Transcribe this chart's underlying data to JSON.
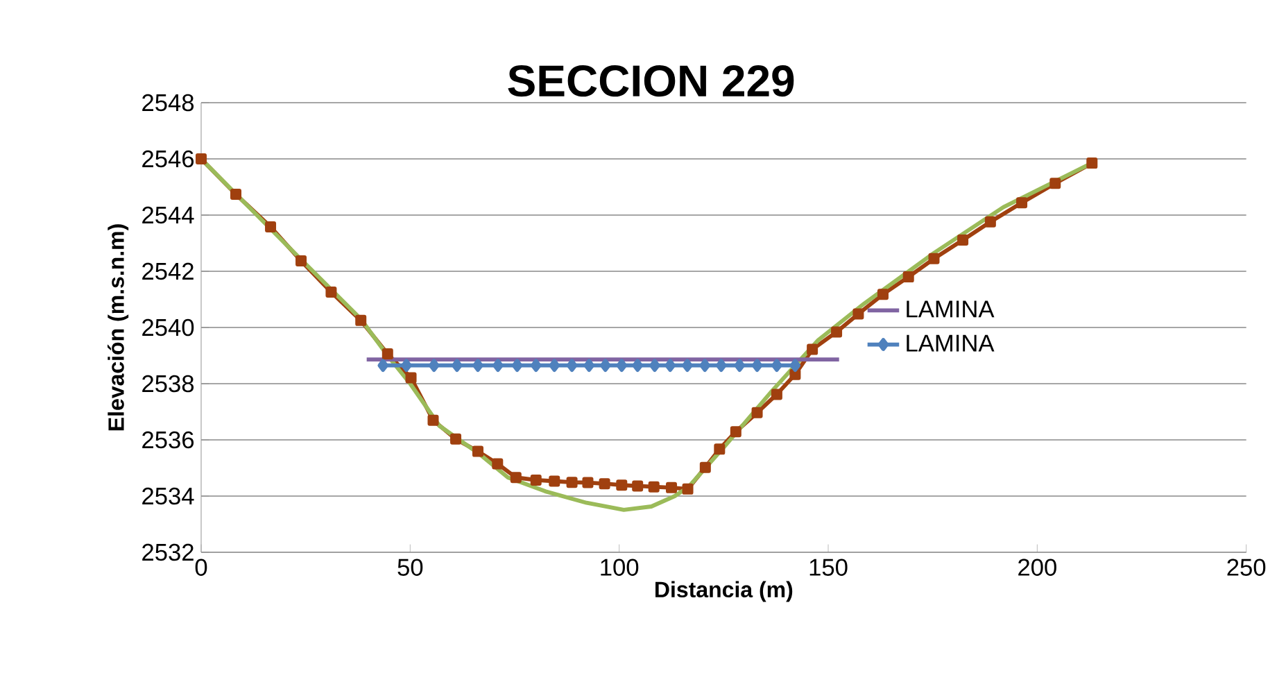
{
  "chart_data": {
    "type": "line",
    "title": "SECCION 229",
    "xlabel": "Distancia (m)",
    "ylabel": "Elevación (m.s.n.m)",
    "xlim": [
      0,
      250
    ],
    "xticks": [
      0,
      50,
      100,
      150,
      200,
      250
    ],
    "ylim": [
      2532,
      2548
    ],
    "yticks": [
      2532,
      2534,
      2536,
      2538,
      2540,
      2542,
      2544,
      2546,
      2548
    ],
    "grid": "y",
    "legend": "right",
    "series": [
      {
        "color": "#a0400f",
        "marker": "square",
        "x": [
          0,
          8.3,
          16.6,
          23.9,
          31.1,
          38.2,
          44.6,
          50.2,
          55.5,
          60.9,
          66.2,
          70.9,
          75.3,
          80.1,
          84.5,
          88.7,
          92.5,
          96.5,
          100.6,
          104.4,
          108.3,
          112.5,
          116.4,
          120.6,
          124.0,
          127.9,
          133.0,
          137.7,
          142.1,
          146.2,
          152.0,
          157.2,
          163.1,
          169.2,
          175.3,
          182.2,
          188.8,
          196.3,
          204.3,
          213.1
        ],
        "values": [
          2546,
          2544.74,
          2543.58,
          2542.37,
          2541.26,
          2540.25,
          2539.06,
          2538.21,
          2536.7,
          2536.03,
          2535.59,
          2535.15,
          2534.66,
          2534.57,
          2534.53,
          2534.49,
          2534.48,
          2534.44,
          2534.39,
          2534.36,
          2534.33,
          2534.3,
          2534.25,
          2535.02,
          2535.67,
          2536.29,
          2536.97,
          2537.62,
          2538.33,
          2539.22,
          2539.84,
          2540.48,
          2541.18,
          2541.8,
          2542.45,
          2543.11,
          2543.76,
          2544.44,
          2545.13,
          2545.85
        ]
      },
      {
        "color": "#9bbb59",
        "marker": "none",
        "x": [
          0,
          20,
          38.2,
          44.6,
          50,
          57,
          66.8,
          73.4,
          82.3,
          92.2,
          101.1,
          107.7,
          113.3,
          116.6,
          125.4,
          136.6,
          147.6,
          158.6,
          175.3,
          191.9,
          211.7,
          213.1
        ],
        "values": [
          2546,
          2543,
          2540.3,
          2539.0,
          2538,
          2536.5,
          2535.47,
          2534.66,
          2534.17,
          2533.76,
          2533.51,
          2533.63,
          2534.0,
          2534.33,
          2535.8,
          2537.75,
          2539.55,
          2540.85,
          2542.65,
          2544.28,
          2545.75,
          2545.85
        ]
      },
      {
        "name": "LAMINA",
        "color": "#8064a2",
        "marker": "none",
        "x": [
          39.6,
          152.6
        ],
        "values": [
          2538.86,
          2538.86
        ]
      },
      {
        "name": "LAMINA",
        "color": "#4f81bd",
        "marker": "diamond",
        "x": [
          43.5,
          49.1,
          55.7,
          61.2,
          66.2,
          71.0,
          75.6,
          80.1,
          84.5,
          88.7,
          92.8,
          96.7,
          100.6,
          104.4,
          108.5,
          112.2,
          116.3,
          120.5,
          124.4,
          128.8,
          133.0,
          137.7,
          142.1
        ],
        "values": [
          2538.65,
          2538.65,
          2538.65,
          2538.65,
          2538.65,
          2538.65,
          2538.65,
          2538.65,
          2538.65,
          2538.65,
          2538.65,
          2538.65,
          2538.65,
          2538.65,
          2538.65,
          2538.65,
          2538.65,
          2538.65,
          2538.65,
          2538.65,
          2538.65,
          2538.65,
          2538.65
        ]
      }
    ]
  }
}
